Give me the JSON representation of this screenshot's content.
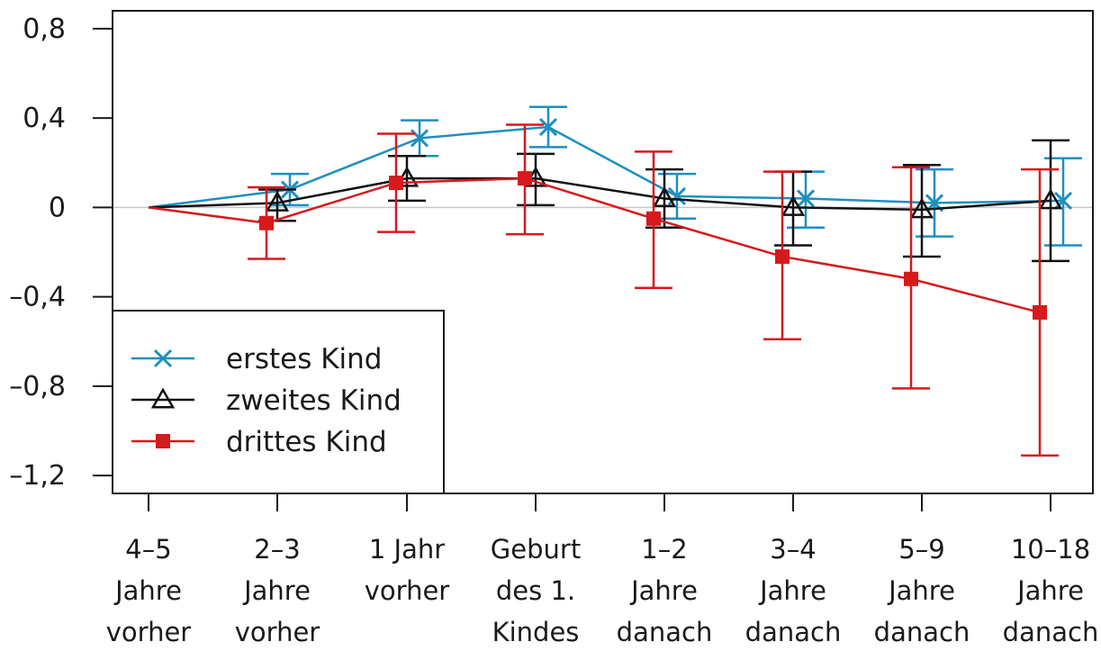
{
  "chart_data": {
    "type": "line",
    "categories": [
      [
        "4–5",
        "Jahre",
        "vorher"
      ],
      [
        "2–3",
        "Jahre",
        "vorher"
      ],
      [
        "1 Jahr",
        "vorher"
      ],
      [
        "Geburt",
        "des 1.",
        "Kindes"
      ],
      [
        "1–2",
        "Jahre",
        "danach"
      ],
      [
        "3–4",
        "Jahre",
        "danach"
      ],
      [
        "5–9",
        "Jahre",
        "danach"
      ],
      [
        "10–18",
        "Jahre",
        "danach"
      ]
    ],
    "y_ticks": [
      0.8,
      0.4,
      0,
      -0.4,
      -0.8,
      -1.2
    ],
    "y_tick_labels": [
      "0,8",
      "0,4",
      "0",
      "–0,4",
      "–0,8",
      "–1,2"
    ],
    "ylim": [
      -1.28,
      0.88
    ],
    "reference_line_y": 0,
    "grid": false,
    "legend_position": "bottom-left",
    "series": [
      {
        "name": "erstes Kind",
        "color": "#1f8fc0",
        "marker": "x",
        "values": [
          0,
          0.08,
          0.31,
          0.36,
          0.05,
          0.04,
          0.02,
          0.03
        ],
        "ci_low": [
          null,
          0.01,
          0.23,
          0.27,
          -0.05,
          -0.09,
          -0.13,
          -0.17
        ],
        "ci_high": [
          null,
          0.15,
          0.39,
          0.45,
          0.15,
          0.16,
          0.17,
          0.22
        ]
      },
      {
        "name": "zweites Kind",
        "color": "#111111",
        "marker": "triangle",
        "values": [
          0,
          0.02,
          0.13,
          0.13,
          0.04,
          0,
          -0.01,
          0.03
        ],
        "ci_low": [
          null,
          -0.06,
          0.03,
          0.01,
          -0.09,
          -0.17,
          -0.22,
          -0.24
        ],
        "ci_high": [
          null,
          0.08,
          0.23,
          0.24,
          0.17,
          0.16,
          0.19,
          0.3
        ]
      },
      {
        "name": "drittes Kind",
        "color": "#d7191c",
        "marker": "square",
        "values": [
          0,
          -0.07,
          0.11,
          0.13,
          -0.05,
          -0.22,
          -0.32,
          -0.47
        ],
        "ci_low": [
          null,
          -0.23,
          -0.11,
          -0.12,
          -0.36,
          -0.59,
          -0.81,
          -1.11
        ],
        "ci_high": [
          null,
          0.09,
          0.33,
          0.37,
          0.25,
          0.16,
          0.18,
          0.17
        ]
      }
    ]
  }
}
